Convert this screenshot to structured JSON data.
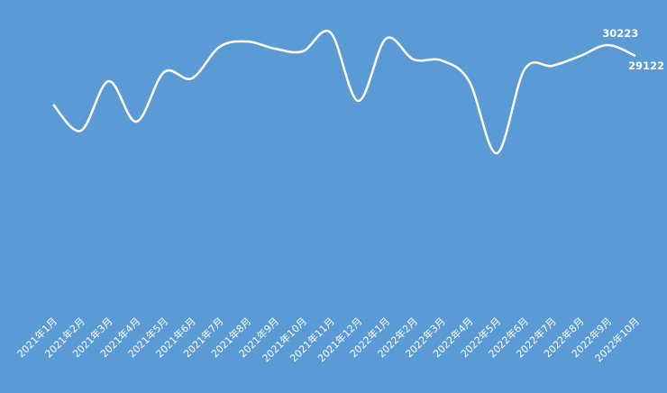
{
  "chart_data": {
    "type": "line",
    "categories": [
      "2021年1月",
      "2021年2月",
      "2021年3月",
      "2021年4月",
      "2021年5月",
      "2021年6月",
      "2021年7月",
      "2021年8月",
      "2021年9月",
      "2021年10月",
      "2021年11月",
      "2021年12月",
      "2022年1月",
      "2022年2月",
      "2022年3月",
      "2022年4月",
      "2022年5月",
      "2022年6月",
      "2022年7月",
      "2022年8月",
      "2022年9月",
      "2022年10月"
    ],
    "values": [
      24168,
      21507,
      26553,
      22424,
      27471,
      26828,
      30040,
      30590,
      29856,
      29581,
      31507,
      24535,
      30865,
      28755,
      28663,
      26553,
      19213,
      27746,
      28113,
      29100,
      30223,
      29122
    ],
    "value_labels": [
      null,
      null,
      null,
      null,
      null,
      null,
      null,
      null,
      null,
      null,
      null,
      null,
      null,
      null,
      null,
      null,
      null,
      null,
      null,
      null,
      "30223",
      "29122"
    ],
    "color": "#ffffff",
    "smooth": true,
    "drop_lines": true
  }
}
